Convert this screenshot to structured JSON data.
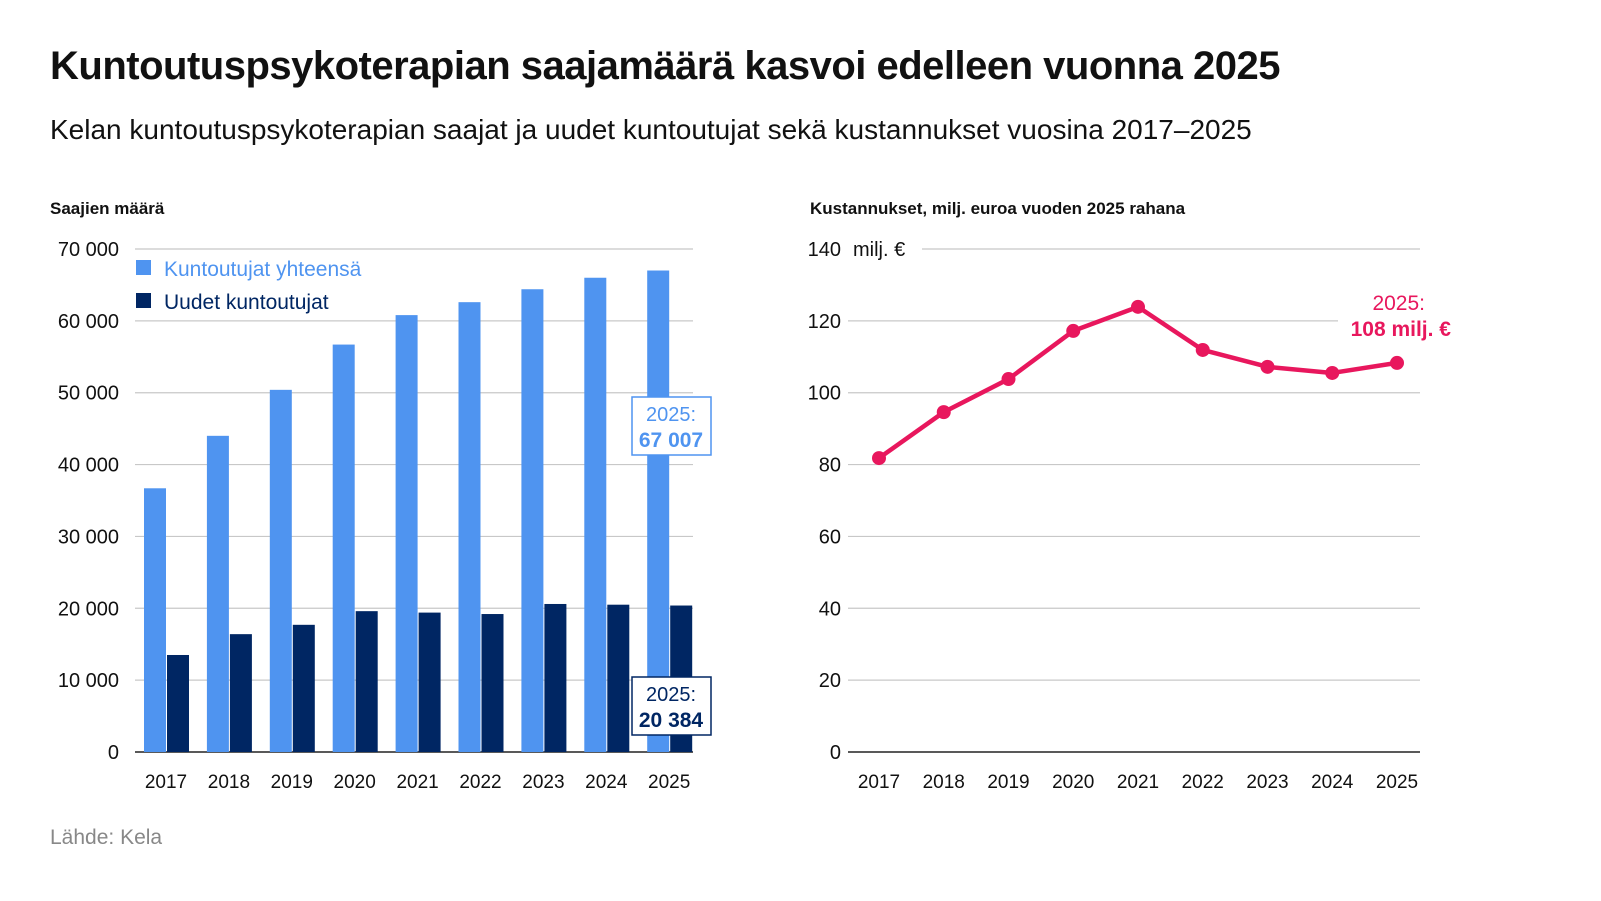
{
  "title": "Kuntoutuspsykoterapian saajamäärä kasvoi edelleen vuonna 2025",
  "subtitle": "Kelan kuntoutuspsykoterapian saajat ja uudet kuntoutujat sekä kustannukset vuosina 2017–2025",
  "source": "Lähde: Kela",
  "colors": {
    "total": "#4f94f0",
    "new": "#002663",
    "cost": "#e8175d",
    "grid": "#c8c8c8"
  },
  "chart_data": [
    {
      "type": "bar",
      "ylabel": "Saajien määrä",
      "categories": [
        "2017",
        "2018",
        "2019",
        "2020",
        "2021",
        "2022",
        "2023",
        "2024",
        "2025"
      ],
      "ylim": [
        0,
        70000
      ],
      "yticks": [
        "0",
        "10 000",
        "20 000",
        "30 000",
        "40 000",
        "50 000",
        "60 000",
        "70 000"
      ],
      "grid": true,
      "legend_placement": "top-left",
      "series": [
        {
          "name": "Kuntoutujat yhteensä",
          "values": [
            36700,
            44000,
            50400,
            56700,
            60800,
            62600,
            64400,
            66000,
            67007
          ]
        },
        {
          "name": "Uudet kuntoutujat",
          "values": [
            13500,
            16400,
            17700,
            19600,
            19400,
            19200,
            20600,
            20500,
            20384
          ]
        }
      ],
      "annotations": [
        {
          "year_label": "2025:",
          "value_label": "67 007"
        },
        {
          "year_label": "2025:",
          "value_label": "20 384"
        }
      ]
    },
    {
      "type": "line",
      "ylabel": "Kustannukset, milj. euroa vuoden 2025 rahana",
      "unit_label": "milj. €",
      "categories": [
        "2017",
        "2018",
        "2019",
        "2020",
        "2021",
        "2022",
        "2023",
        "2024",
        "2025"
      ],
      "ylim": [
        0,
        140
      ],
      "yticks": [
        "0",
        "20",
        "40",
        "60",
        "80",
        "100",
        "120",
        "140"
      ],
      "grid": true,
      "values": [
        81.8,
        94.6,
        103.8,
        117.2,
        123.9,
        111.9,
        107.2,
        105.5,
        108.3
      ],
      "annotation": {
        "year_label": "2025:",
        "value_label": "108 milj. €"
      }
    }
  ]
}
